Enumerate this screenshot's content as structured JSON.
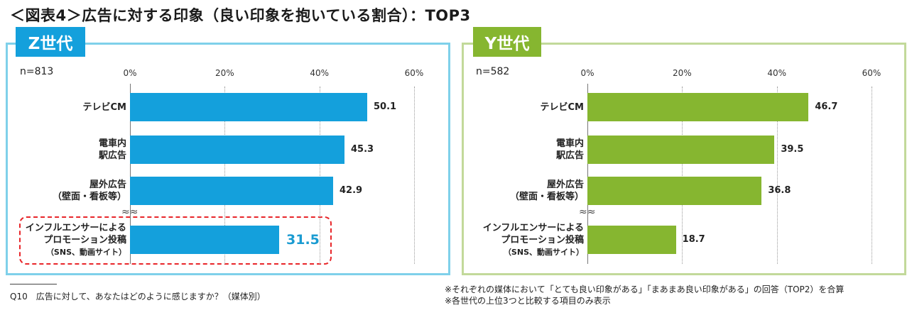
{
  "title": "＜図表4＞広告に対する印象（良い印象を抱いている割合）：TOP3",
  "panels": [
    {
      "tag": "Z世代",
      "n": "n=813"
    },
    {
      "tag": "Y世代",
      "n": "n=582"
    }
  ],
  "colors": {
    "z_frame": "#7fd0ea",
    "z_bar": "#14a0dc",
    "y_frame": "#c2d99a",
    "y_bar": "#86b630",
    "highlight": "#e8262a"
  },
  "chart_data": [
    {
      "type": "bar",
      "orientation": "horizontal",
      "title": "Z世代",
      "n": "n=813",
      "categories": [
        "テレビCM",
        "電車内駅広告",
        "屋外広告（壁面・看板等）",
        "インフルエンサーによるプロモーション投稿（SNS、動画サイト）"
      ],
      "values": [
        50.1,
        45.3,
        42.9,
        31.5
      ],
      "value_labels": [
        "50.1",
        "45.3",
        "42.9",
        "31.5"
      ],
      "xlim": [
        0,
        60
      ],
      "xticks": [
        "0%",
        "20%",
        "40%",
        "60%"
      ],
      "highlighted_category": "インフルエンサーによるプロモーション投稿（SNS、動画サイト）"
    },
    {
      "type": "bar",
      "orientation": "horizontal",
      "title": "Y世代",
      "n": "n=582",
      "categories": [
        "テレビCM",
        "電車内駅広告",
        "屋外広告（壁面・看板等）",
        "インフルエンサーによるプロモーション投稿（SNS、動画サイト）"
      ],
      "values": [
        46.7,
        39.5,
        36.8,
        18.7
      ],
      "value_labels": [
        "46.7",
        "39.5",
        "36.8",
        "18.7"
      ],
      "xlim": [
        0,
        60
      ],
      "xticks": [
        "0%",
        "20%",
        "40%",
        "60%"
      ]
    }
  ],
  "category_lines": [
    [
      "テレビCM"
    ],
    [
      "電車内",
      "駅広告"
    ],
    [
      "屋外広告",
      "（壁面・看板等）"
    ],
    [
      "インフルエンサーによる",
      "プロモーション投稿",
      "（SNS、動画サイト）"
    ]
  ],
  "wave_mark": "≈≈",
  "footnotes": {
    "question": "Q10　広告に対して、あなたはどのように感じますか？（媒体別）",
    "note1": "※それぞれの媒体において「とても良い印象がある」「まあまあ良い印象がある」の回答（TOP2）を合算",
    "note2": "※各世代の上位3つと比較する項目のみ表示"
  }
}
